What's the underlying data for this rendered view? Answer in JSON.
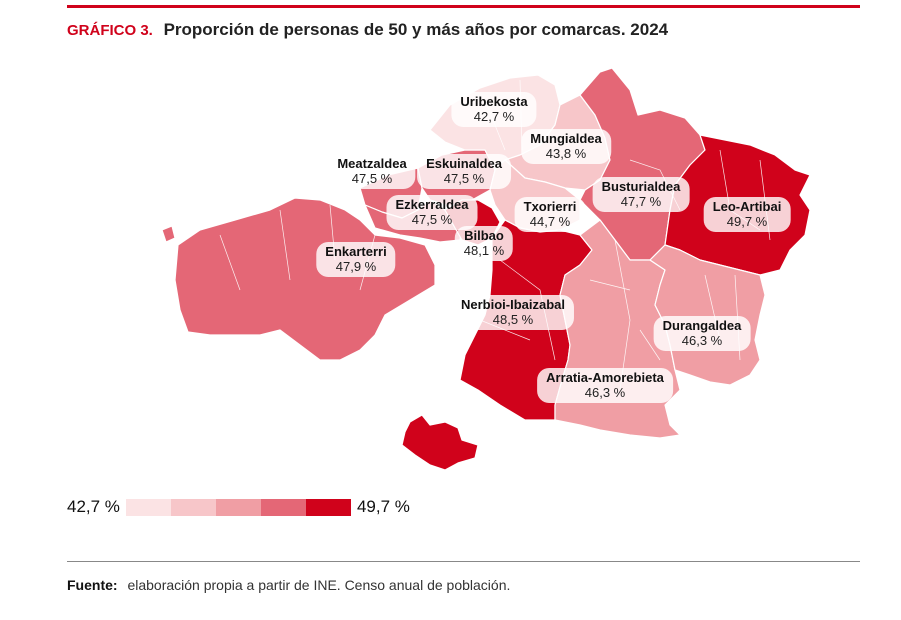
{
  "header": {
    "figure_number": "GRÁFICO 3.",
    "title": "Proporción de personas de 50 y más años por comarcas. 2024"
  },
  "colors": {
    "accent": "#d0021b",
    "scale": [
      "#fbe3e4",
      "#f7c6c9",
      "#f09ea4",
      "#e46776",
      "#d0021b"
    ]
  },
  "comarcas": [
    {
      "id": "uribekosta",
      "name": "Uribekosta",
      "value": "42,7 %",
      "class": 0
    },
    {
      "id": "mungialdea",
      "name": "Mungialdea",
      "value": "43,8 %",
      "class": 1
    },
    {
      "id": "meatzaldea",
      "name": "Meatzaldea",
      "value": "47,5 %",
      "class": 3
    },
    {
      "id": "eskuinaldea",
      "name": "Eskuinaldea",
      "value": "47,5 %",
      "class": 3
    },
    {
      "id": "busturialdea",
      "name": "Busturialdea",
      "value": "47,7 %",
      "class": 3
    },
    {
      "id": "ezkerraldea",
      "name": "Ezkerraldea",
      "value": "47,5 %",
      "class": 3
    },
    {
      "id": "txorierri",
      "name": "Txorierri",
      "value": "44,7 %",
      "class": 1
    },
    {
      "id": "leo-artibai",
      "name": "Leo-Artibai",
      "value": "49,7 %",
      "class": 4
    },
    {
      "id": "bilbao",
      "name": "Bilbao",
      "value": "48,1 %",
      "class": 4
    },
    {
      "id": "enkarterri",
      "name": "Enkarterri",
      "value": "47,9 %",
      "class": 3
    },
    {
      "id": "nerbioi-ibaizabal",
      "name": "Nerbioi-Ibaizabal",
      "value": "48,5 %",
      "class": 4
    },
    {
      "id": "durangaldea",
      "name": "Durangaldea",
      "value": "46,3 %",
      "class": 2
    },
    {
      "id": "arratia-amorebieta",
      "name": "Arratia-Amorebieta",
      "value": "46,3 %",
      "class": 2
    }
  ],
  "legend": {
    "min": "42,7 %",
    "max": "49,7 %"
  },
  "footer": {
    "source_label": "Fuente:",
    "source_text": "elaboración propia a partir de INE. Censo anual de población."
  }
}
